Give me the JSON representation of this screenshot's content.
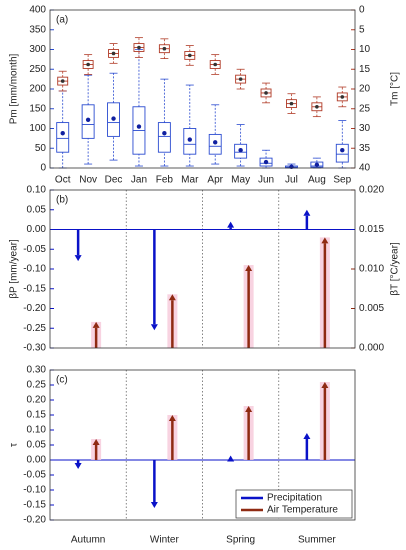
{
  "chart_data": [
    {
      "type": "box",
      "annotation": "(a)",
      "ylabel": "Pm [mm/month]",
      "y2label": "Tm [°C]",
      "categories": [
        "Oct",
        "Nov",
        "Dec",
        "Jan",
        "Feb",
        "Mar",
        "Apr",
        "May",
        "Jun",
        "Jul",
        "Aug",
        "Sep"
      ],
      "ylim": [
        0,
        400
      ],
      "yticks": [
        0,
        50,
        100,
        150,
        200,
        250,
        300,
        350,
        400
      ],
      "y2lim": [
        40,
        0
      ],
      "y2ticks": [
        40,
        35,
        30,
        25,
        20,
        15,
        10,
        5,
        0
      ],
      "series": [
        {
          "color": "#2a4bd0",
          "whislo": [
            0,
            10,
            20,
            5,
            5,
            5,
            10,
            5,
            0,
            0,
            0,
            0
          ],
          "q1": [
            40,
            75,
            80,
            35,
            40,
            35,
            35,
            25,
            5,
            0,
            2,
            15
          ],
          "med": [
            75,
            110,
            115,
            95,
            80,
            60,
            55,
            40,
            12,
            2,
            5,
            35
          ],
          "q3": [
            115,
            160,
            165,
            155,
            115,
            100,
            85,
            60,
            25,
            5,
            15,
            60
          ],
          "whishi": [
            195,
            235,
            240,
            300,
            225,
            210,
            160,
            110,
            45,
            10,
            25,
            120
          ],
          "mean": [
            88,
            122,
            125,
            105,
            88,
            72,
            65,
            45,
            15,
            3,
            8,
            45
          ]
        },
        {
          "color": "#b03a26",
          "axis": "y2",
          "whislo": [
            20.5,
            16.3,
            13.5,
            12,
            12.3,
            14,
            16.3,
            20,
            23.5,
            26.2,
            27,
            24.5
          ],
          "q1": [
            19,
            14.8,
            12,
            10.5,
            10.8,
            12.5,
            14.8,
            18.5,
            22,
            24.7,
            25.5,
            23
          ],
          "med": [
            18,
            13.8,
            11,
            9.5,
            9.8,
            11.5,
            13.8,
            17.5,
            21,
            23.7,
            24.5,
            22
          ],
          "q3": [
            17,
            12.8,
            10,
            8.5,
            8.8,
            10.5,
            12.8,
            16.5,
            20,
            22.7,
            23.5,
            21
          ],
          "whishi": [
            15.5,
            11.3,
            8.5,
            7,
            7.3,
            9,
            11.3,
            15,
            18.5,
            21.2,
            22,
            19.5
          ],
          "mean": [
            18,
            13.8,
            11,
            9.5,
            9.8,
            11.5,
            13.8,
            17.5,
            21,
            23.7,
            24.5,
            22
          ]
        }
      ]
    },
    {
      "type": "arrow",
      "annotation": "(b)",
      "ylabel": "βP [mm/year]",
      "y2label": "βT [°C/year]",
      "categories": [
        null,
        null,
        null,
        null
      ],
      "ylim": [
        -0.3,
        0.1
      ],
      "yticks": [
        {
          "value": -0.3,
          "label": "-0.30"
        },
        {
          "value": -0.25,
          "label": "-0.25"
        },
        {
          "value": -0.2,
          "label": "-0.20"
        },
        {
          "value": -0.15,
          "label": "-0.15"
        },
        {
          "value": -0.1,
          "label": "-0.10"
        },
        {
          "value": -0.05,
          "label": "-0.05"
        },
        {
          "value": 0,
          "label": "0.00"
        },
        {
          "value": 0.05,
          "label": "0.05"
        },
        {
          "value": 0.1,
          "label": "0.10"
        }
      ],
      "y2lim": [
        0,
        0.02
      ],
      "y2ticks": [
        {
          "value": 0,
          "label": "0.000"
        },
        {
          "value": 0.005,
          "label": "0.005"
        },
        {
          "value": 0.01,
          "label": "0.010"
        },
        {
          "value": 0.015,
          "label": "0.015"
        },
        {
          "value": 0.02,
          "label": "0.020"
        }
      ],
      "series": [
        {
          "color": "#0a12c8",
          "values": [
            -0.08,
            -0.255,
            0.02,
            0.05
          ]
        },
        {
          "color": "#8f2a12",
          "axis": "y2",
          "values": [
            0.0033,
            0.0068,
            0.0105,
            0.014
          ]
        }
      ]
    },
    {
      "type": "arrow",
      "annotation": "(c)",
      "ylabel": "τ",
      "categories": [
        "Autumn",
        "Winter",
        "Spring",
        "Summer"
      ],
      "ylim": [
        -0.2,
        0.3
      ],
      "yticks": [
        {
          "value": -0.2,
          "label": "-0.20"
        },
        {
          "value": -0.15,
          "label": "-0.15"
        },
        {
          "value": -0.1,
          "label": "-0.10"
        },
        {
          "value": -0.05,
          "label": "-0.05"
        },
        {
          "value": 0,
          "label": "0.00"
        },
        {
          "value": 0.05,
          "label": "0.05"
        },
        {
          "value": 0.1,
          "label": "0.10"
        },
        {
          "value": 0.15,
          "label": "0.15"
        },
        {
          "value": 0.2,
          "label": "0.20"
        },
        {
          "value": 0.25,
          "label": "0.25"
        },
        {
          "value": 0.3,
          "label": "0.30"
        }
      ],
      "legend": "lower right",
      "series": [
        {
          "name": "Precipitation",
          "color": "#0a12c8",
          "values": [
            -0.03,
            -0.16,
            0.015,
            0.09
          ]
        },
        {
          "name": "Air Temperature",
          "color": "#8f2a12",
          "values": [
            0.07,
            0.15,
            0.18,
            0.26
          ]
        }
      ]
    }
  ]
}
